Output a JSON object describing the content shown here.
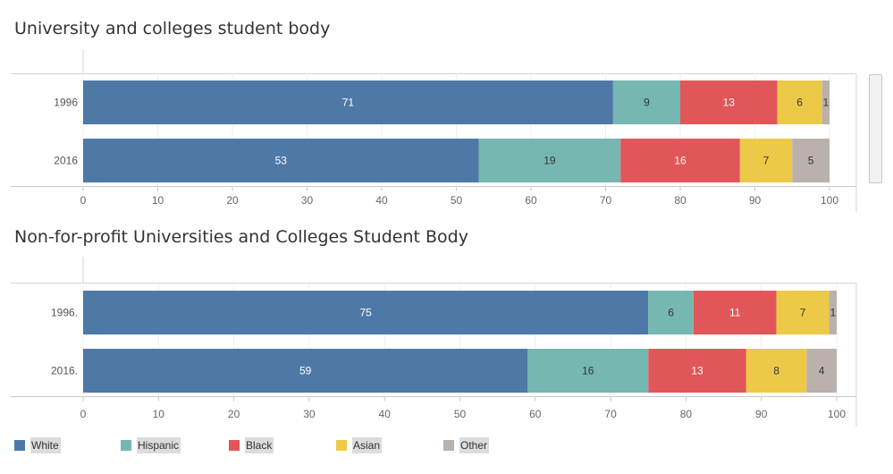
{
  "chart_data": [
    {
      "type": "bar",
      "orientation": "horizontal",
      "stacked": true,
      "title": "University and colleges student body",
      "categories": [
        "1996",
        "2016"
      ],
      "series": [
        {
          "name": "White",
          "color": "#4e79a7",
          "values": [
            71,
            53
          ]
        },
        {
          "name": "Hispanic",
          "color": "#76b7b2",
          "values": [
            9,
            19
          ]
        },
        {
          "name": "Black",
          "color": "#e15759",
          "values": [
            13,
            16
          ]
        },
        {
          "name": "Asian",
          "color": "#edc948",
          "values": [
            6,
            7
          ]
        },
        {
          "name": "Other",
          "color": "#bab0ac",
          "values": [
            1,
            5
          ]
        }
      ],
      "xlim": [
        0,
        100
      ],
      "xticks": [
        "0",
        "10",
        "20",
        "30",
        "40",
        "50",
        "60",
        "70",
        "80",
        "90",
        "100"
      ],
      "grid": true
    },
    {
      "type": "bar",
      "orientation": "horizontal",
      "stacked": true,
      "title": "Non-for-profit Universities and Colleges Student Body",
      "categories": [
        "1996.",
        "2016."
      ],
      "series": [
        {
          "name": "White",
          "color": "#4e79a7",
          "values": [
            75,
            59
          ]
        },
        {
          "name": "Hispanic",
          "color": "#76b7b2",
          "values": [
            6,
            16
          ]
        },
        {
          "name": "Black",
          "color": "#e15759",
          "values": [
            11,
            13
          ]
        },
        {
          "name": "Asian",
          "color": "#edc948",
          "values": [
            7,
            8
          ]
        },
        {
          "name": "Other",
          "color": "#bab0ac",
          "values": [
            1,
            4
          ]
        }
      ],
      "xlim": [
        0,
        100
      ],
      "xticks": [
        "0",
        "10",
        "20",
        "30",
        "40",
        "50",
        "60",
        "70",
        "80",
        "90",
        "100"
      ],
      "grid": true
    }
  ],
  "legend": {
    "placement": "bottom",
    "items": [
      {
        "label": "White",
        "color": "#4e79a7"
      },
      {
        "label": "Hispanic",
        "color": "#76b7b2"
      },
      {
        "label": "Black",
        "color": "#e15759"
      },
      {
        "label": "Asian",
        "color": "#edc948"
      },
      {
        "label": "Other",
        "color": "#bab0ac"
      }
    ]
  }
}
